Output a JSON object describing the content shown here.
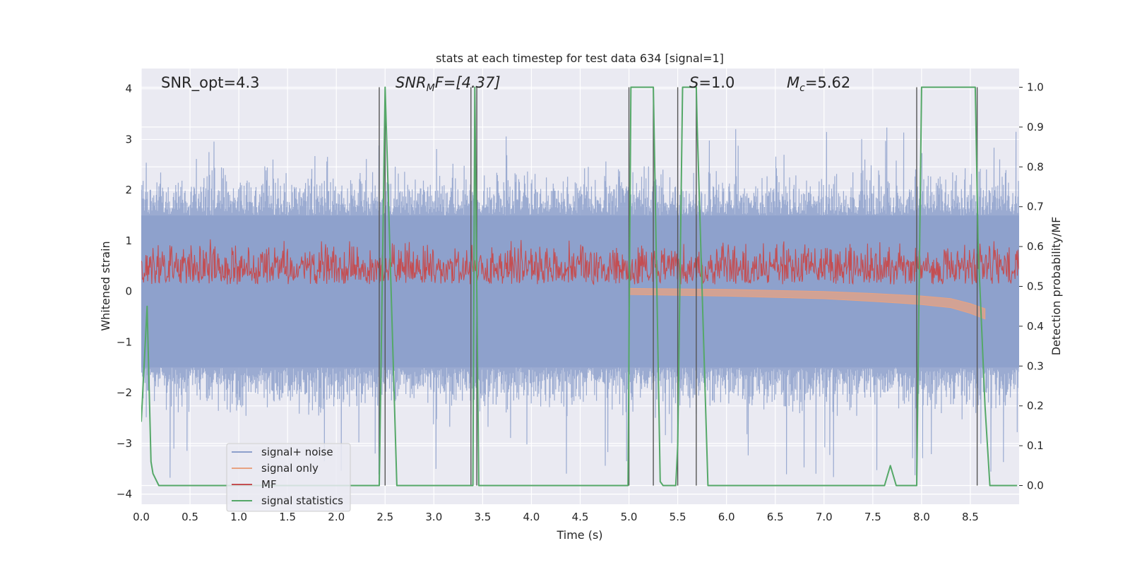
{
  "chart_data": {
    "type": "line",
    "title": "stats at each timestep for test data 634 [signal=1]",
    "xlabel": "Time (s)",
    "ylabel": "Whitened strain",
    "ylabel_right": "Detection probability/MF",
    "xlim": [
      0.0,
      9.0
    ],
    "ylim": [
      -4.2,
      4.4
    ],
    "ylim_right": [
      -0.047,
      1.047
    ],
    "xticks": [
      "0.0",
      "0.5",
      "1.0",
      "1.5",
      "2.0",
      "2.5",
      "3.0",
      "3.5",
      "4.0",
      "4.5",
      "5.0",
      "5.5",
      "6.0",
      "6.5",
      "7.0",
      "7.5",
      "8.0",
      "8.5"
    ],
    "yticks": [
      "-4",
      "-3",
      "-2",
      "-1",
      "0",
      "1",
      "2",
      "3",
      "4"
    ],
    "yticks_right": [
      "0.0",
      "0.1",
      "0.2",
      "0.3",
      "0.4",
      "0.5",
      "0.6",
      "0.7",
      "0.8",
      "0.9",
      "1.0"
    ],
    "grid": true,
    "legend_position": "lower-left",
    "annotations": {
      "snr_opt": "SNR_opt=4.3",
      "snr_mf_prefix": "SNR",
      "snr_mf_sub": "M",
      "snr_mf_suffix": "F=[4.37]",
      "s_label": "S",
      "s_value": "=1.0",
      "mc_label": "M",
      "mc_sub": "c",
      "mc_value": "=5.62"
    },
    "series": [
      {
        "name": "signal+ noise",
        "color": "#8da0cb",
        "envelope": {
          "upper_typical": 1.5,
          "upper_peak": 3.3,
          "lower_typical": -1.5,
          "lower_peak": -3.8
        }
      },
      {
        "name": "signal only",
        "color": "#e8a382",
        "x": [
          5.0,
          6.0,
          7.0,
          7.5,
          8.0,
          8.3,
          8.5,
          8.65
        ],
        "y": [
          0.0,
          -0.02,
          -0.06,
          -0.1,
          -0.15,
          -0.2,
          -0.3,
          -0.4
        ]
      },
      {
        "name": "MF",
        "color": "#c44e52",
        "axis": "right",
        "band": [
          0.5,
          0.62
        ]
      },
      {
        "name": "signal statistics",
        "color": "#55a868",
        "axis": "right",
        "x": [
          0.0,
          0.06,
          0.1,
          0.12,
          0.18,
          2.42,
          2.44,
          2.5,
          2.62,
          3.38,
          3.4,
          3.42,
          3.46,
          3.5,
          4.99,
          5.02,
          5.25,
          5.32,
          5.35,
          5.48,
          5.5,
          5.55,
          5.65,
          5.69,
          5.7,
          5.81,
          7.62,
          7.68,
          7.74,
          7.9,
          7.95,
          8.0,
          8.55,
          8.58,
          8.65,
          8.7,
          8.98
        ],
        "y": [
          0.16,
          0.45,
          0.06,
          0.03,
          0.0,
          0.0,
          0.0,
          1.0,
          0.0,
          0.0,
          0.0,
          1.0,
          0.0,
          0.0,
          0.0,
          1.0,
          1.0,
          0.01,
          0.0,
          0.0,
          0.1,
          1.0,
          1.0,
          1.0,
          0.9,
          0.0,
          0.0,
          0.05,
          0.0,
          0.0,
          0.0,
          1.0,
          1.0,
          0.6,
          0.2,
          0.0,
          0.0
        ]
      }
    ],
    "vertical_lines_x": [
      2.44,
      2.5,
      3.38,
      3.44,
      5.0,
      5.25,
      5.5,
      5.69,
      7.95,
      8.57
    ]
  }
}
